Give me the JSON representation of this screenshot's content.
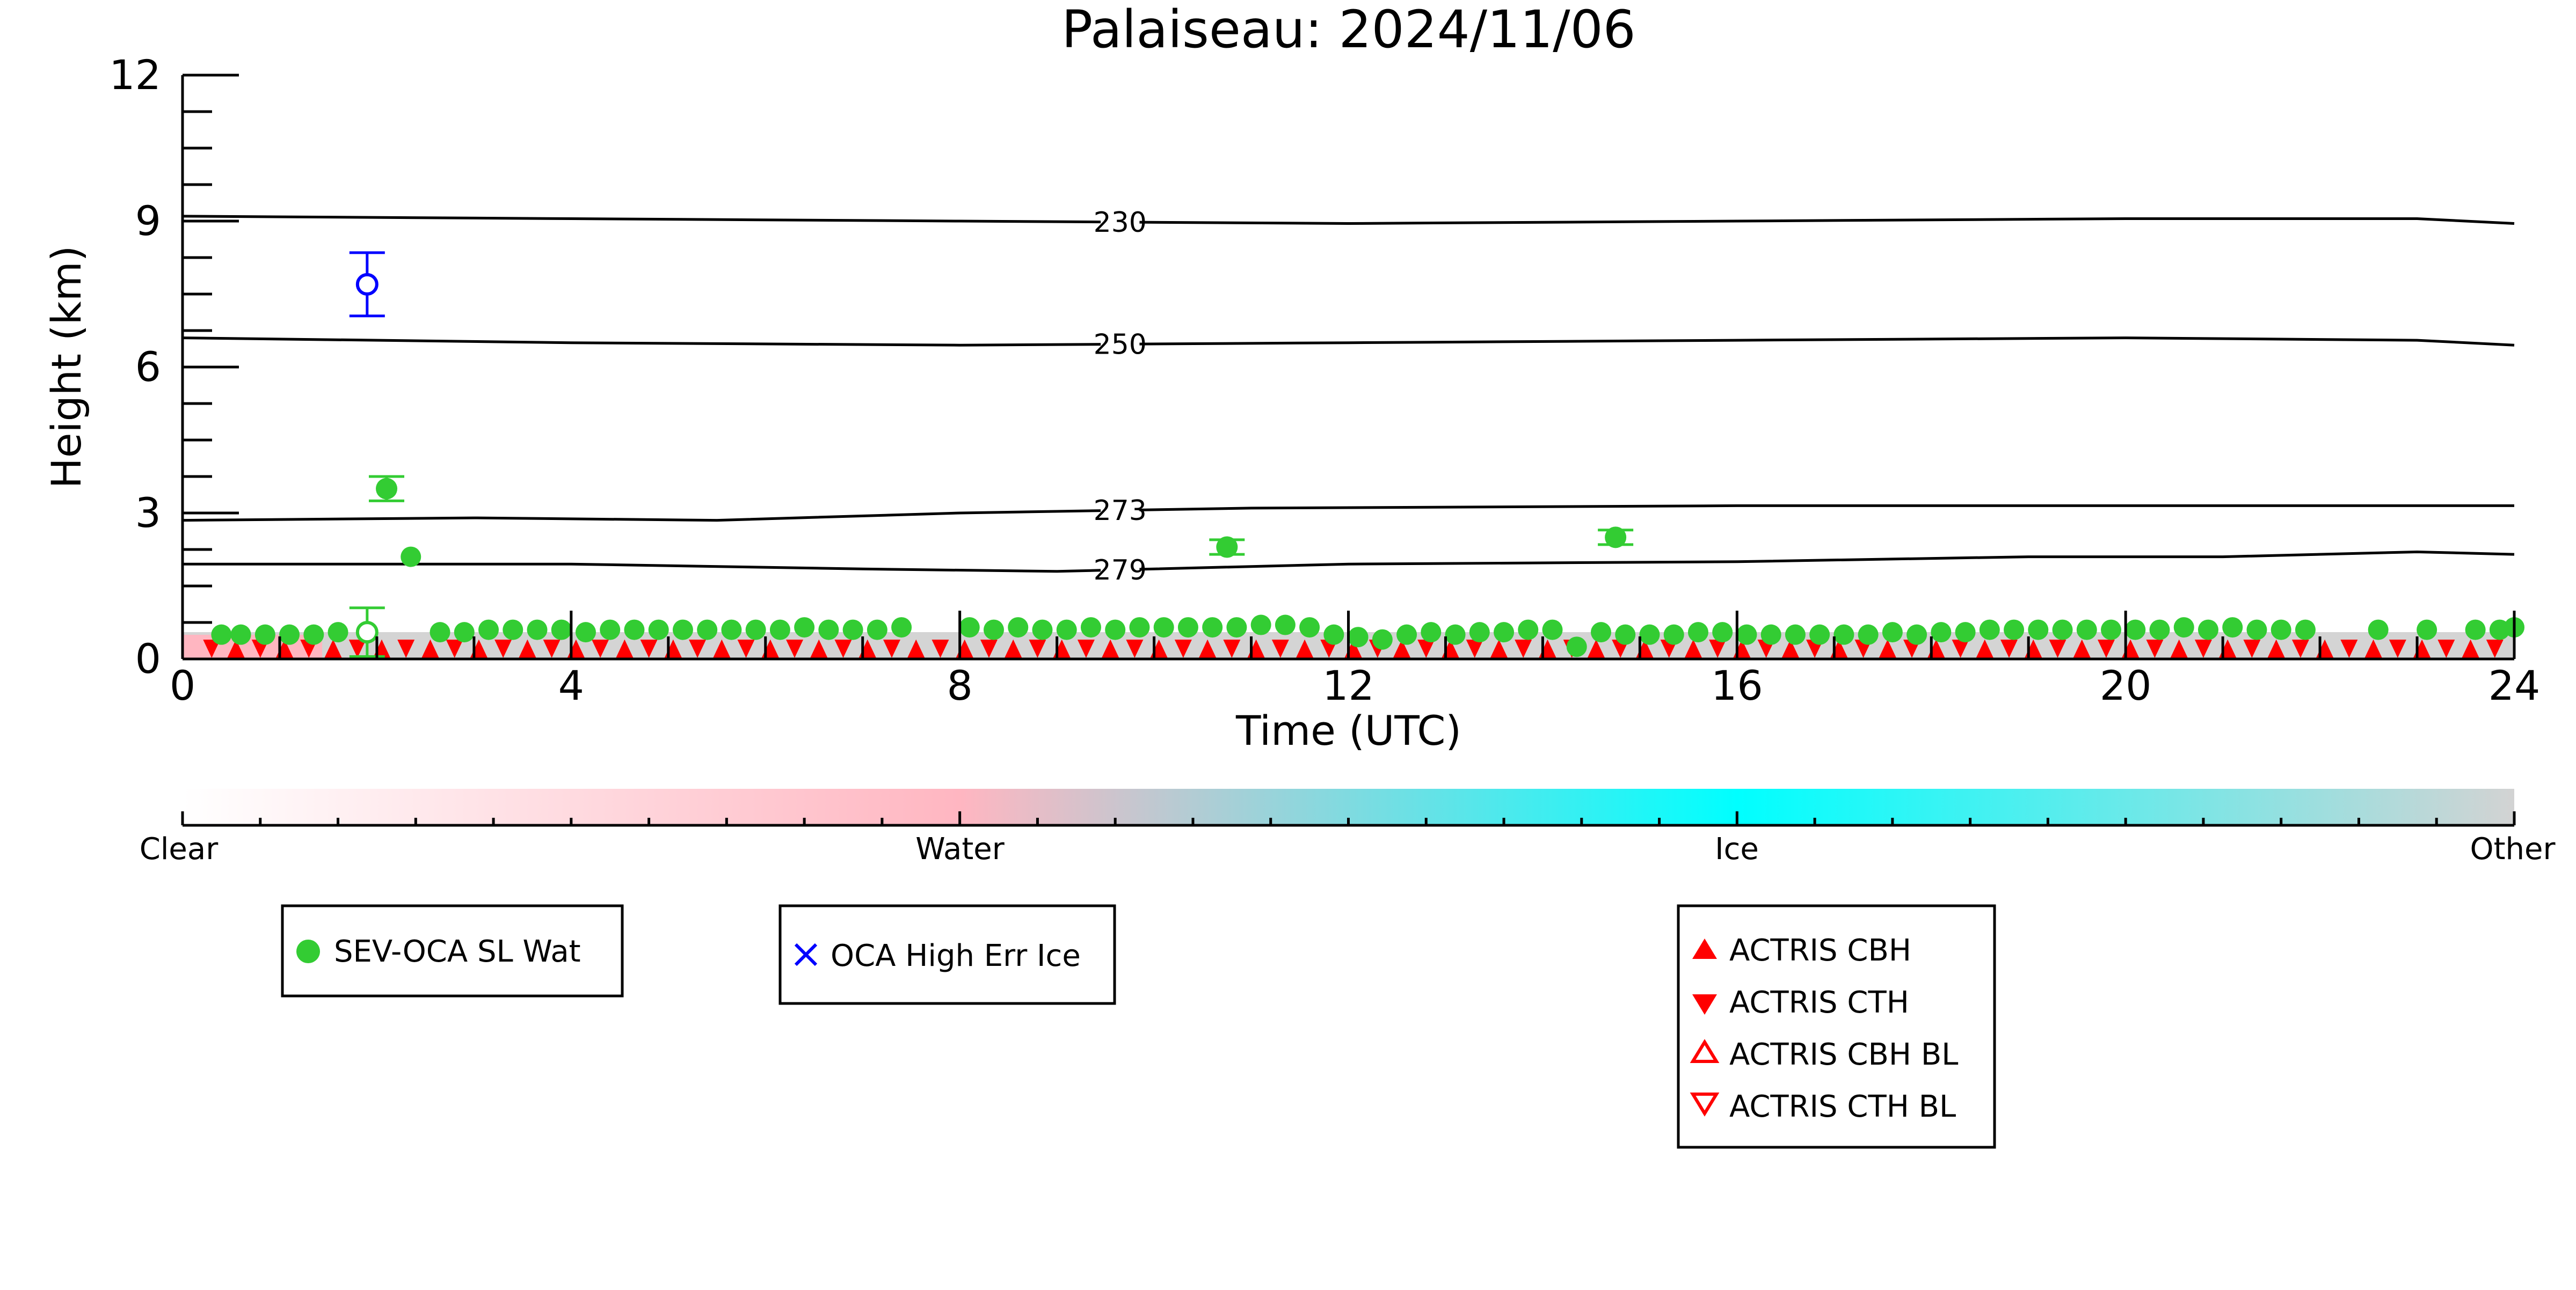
{
  "chart_data": {
    "type": "scatter",
    "title": "Palaiseau: 2024/11/06",
    "xlabel": "Time (UTC)",
    "ylabel": "Height (km)",
    "xlim": [
      0,
      24
    ],
    "ylim": [
      0,
      12
    ],
    "x_ticks": [
      0,
      4,
      8,
      12,
      16,
      20,
      24
    ],
    "y_ticks": [
      0,
      3,
      6,
      9,
      12
    ],
    "grid": false,
    "contours": [
      {
        "label": "230",
        "points": [
          [
            0,
            9.1
          ],
          [
            4,
            9.05
          ],
          [
            8,
            9.0
          ],
          [
            12,
            8.95
          ],
          [
            16,
            9.0
          ],
          [
            20,
            9.05
          ],
          [
            23,
            9.05
          ],
          [
            24,
            8.95
          ]
        ]
      },
      {
        "label": "250",
        "points": [
          [
            0,
            6.6
          ],
          [
            4,
            6.5
          ],
          [
            8,
            6.45
          ],
          [
            12,
            6.5
          ],
          [
            16,
            6.55
          ],
          [
            20,
            6.6
          ],
          [
            23,
            6.55
          ],
          [
            24,
            6.45
          ]
        ]
      },
      {
        "label": "273",
        "points": [
          [
            0,
            2.85
          ],
          [
            3,
            2.9
          ],
          [
            5.5,
            2.85
          ],
          [
            8,
            3.0
          ],
          [
            11,
            3.1
          ],
          [
            16,
            3.15
          ],
          [
            24,
            3.15
          ]
        ]
      },
      {
        "label": "279",
        "points": [
          [
            0,
            1.95
          ],
          [
            4,
            1.95
          ],
          [
            7,
            1.85
          ],
          [
            9,
            1.8
          ],
          [
            12,
            1.95
          ],
          [
            16,
            2.0
          ],
          [
            19,
            2.1
          ],
          [
            21,
            2.1
          ],
          [
            23,
            2.2
          ],
          [
            24,
            2.15
          ]
        ]
      }
    ],
    "series": [
      {
        "name": "SEV-OCA SL Wat",
        "color": "#33cc33",
        "marker": "circle",
        "points": [
          [
            0.4,
            0.5
          ],
          [
            0.6,
            0.5
          ],
          [
            0.85,
            0.5
          ],
          [
            1.1,
            0.5
          ],
          [
            1.35,
            0.5
          ],
          [
            1.6,
            0.55
          ],
          [
            2.35,
            2.1
          ],
          [
            2.65,
            0.55
          ],
          [
            2.9,
            0.55
          ],
          [
            3.15,
            0.6
          ],
          [
            3.4,
            0.6
          ],
          [
            3.65,
            0.6
          ],
          [
            3.9,
            0.6
          ],
          [
            4.15,
            0.55
          ],
          [
            4.4,
            0.6
          ],
          [
            4.65,
            0.6
          ],
          [
            4.9,
            0.6
          ],
          [
            5.15,
            0.6
          ],
          [
            5.4,
            0.6
          ],
          [
            5.65,
            0.6
          ],
          [
            5.9,
            0.6
          ],
          [
            6.15,
            0.6
          ],
          [
            6.4,
            0.65
          ],
          [
            6.65,
            0.6
          ],
          [
            6.9,
            0.6
          ],
          [
            7.15,
            0.6
          ],
          [
            7.4,
            0.65
          ],
          [
            8.1,
            0.65
          ],
          [
            8.35,
            0.6
          ],
          [
            8.6,
            0.65
          ],
          [
            8.85,
            0.6
          ],
          [
            9.1,
            0.6
          ],
          [
            9.35,
            0.65
          ],
          [
            9.6,
            0.6
          ],
          [
            9.85,
            0.65
          ],
          [
            10.1,
            0.65
          ],
          [
            10.35,
            0.65
          ],
          [
            10.6,
            0.65
          ],
          [
            10.85,
            0.65
          ],
          [
            11.1,
            0.7
          ],
          [
            11.35,
            0.7
          ],
          [
            11.6,
            0.65
          ],
          [
            11.85,
            0.5
          ],
          [
            12.1,
            0.45
          ],
          [
            12.35,
            0.4
          ],
          [
            12.6,
            0.5
          ],
          [
            12.85,
            0.55
          ],
          [
            13.1,
            0.5
          ],
          [
            13.35,
            0.55
          ],
          [
            13.6,
            0.55
          ],
          [
            13.85,
            0.6
          ],
          [
            14.1,
            0.6
          ],
          [
            14.35,
            0.25
          ],
          [
            14.6,
            0.55
          ],
          [
            14.85,
            0.5
          ],
          [
            15.1,
            0.5
          ],
          [
            15.35,
            0.5
          ],
          [
            15.6,
            0.55
          ],
          [
            15.85,
            0.55
          ],
          [
            16.1,
            0.5
          ],
          [
            16.35,
            0.5
          ],
          [
            16.6,
            0.5
          ],
          [
            16.85,
            0.5
          ],
          [
            17.1,
            0.5
          ],
          [
            17.35,
            0.5
          ],
          [
            17.6,
            0.55
          ],
          [
            17.85,
            0.5
          ],
          [
            18.1,
            0.55
          ],
          [
            18.35,
            0.55
          ],
          [
            18.6,
            0.6
          ],
          [
            18.85,
            0.6
          ],
          [
            19.1,
            0.6
          ],
          [
            19.35,
            0.6
          ],
          [
            19.6,
            0.6
          ],
          [
            19.85,
            0.6
          ],
          [
            20.1,
            0.6
          ],
          [
            20.35,
            0.6
          ],
          [
            20.6,
            0.65
          ],
          [
            20.85,
            0.6
          ],
          [
            21.1,
            0.65
          ],
          [
            21.35,
            0.6
          ],
          [
            21.6,
            0.6
          ],
          [
            21.85,
            0.6
          ],
          [
            22.6,
            0.6
          ],
          [
            23.1,
            0.6
          ],
          [
            23.6,
            0.6
          ],
          [
            23.85,
            0.6
          ],
          [
            24.0,
            0.65
          ]
        ],
        "error_points": [
          {
            "x": 2.1,
            "y": 3.5,
            "err": 0.25
          },
          {
            "x": 10.75,
            "y": 2.3,
            "err": 0.15
          },
          {
            "x": 14.75,
            "y": 2.5,
            "err": 0.15
          }
        ],
        "open_points": [
          {
            "x": 1.9,
            "y": 0.55,
            "err": 0.5
          }
        ]
      },
      {
        "name": "OCA High Err Ice",
        "color": "#0000ff",
        "marker": "x",
        "open_points": [
          {
            "x": 1.9,
            "y": 7.7,
            "err": 0.65
          }
        ]
      },
      {
        "name": "ACTRIS CBH",
        "color": "#ff0000",
        "marker": "triangle-up"
      },
      {
        "name": "ACTRIS CTH",
        "color": "#ff0000",
        "marker": "triangle-down"
      },
      {
        "name": "ACTRIS CBH BL",
        "color": "#ff0000",
        "marker": "triangle-up-open"
      },
      {
        "name": "ACTRIS CTH BL",
        "color": "#ff0000",
        "marker": "triangle-down-open"
      }
    ],
    "colorbar": {
      "labels": [
        "Clear",
        "Water",
        "Ice",
        "Other"
      ],
      "stops": [
        "#ffffff",
        "#ffb6c1",
        "#00ffff",
        "#d3d3d3"
      ]
    }
  }
}
